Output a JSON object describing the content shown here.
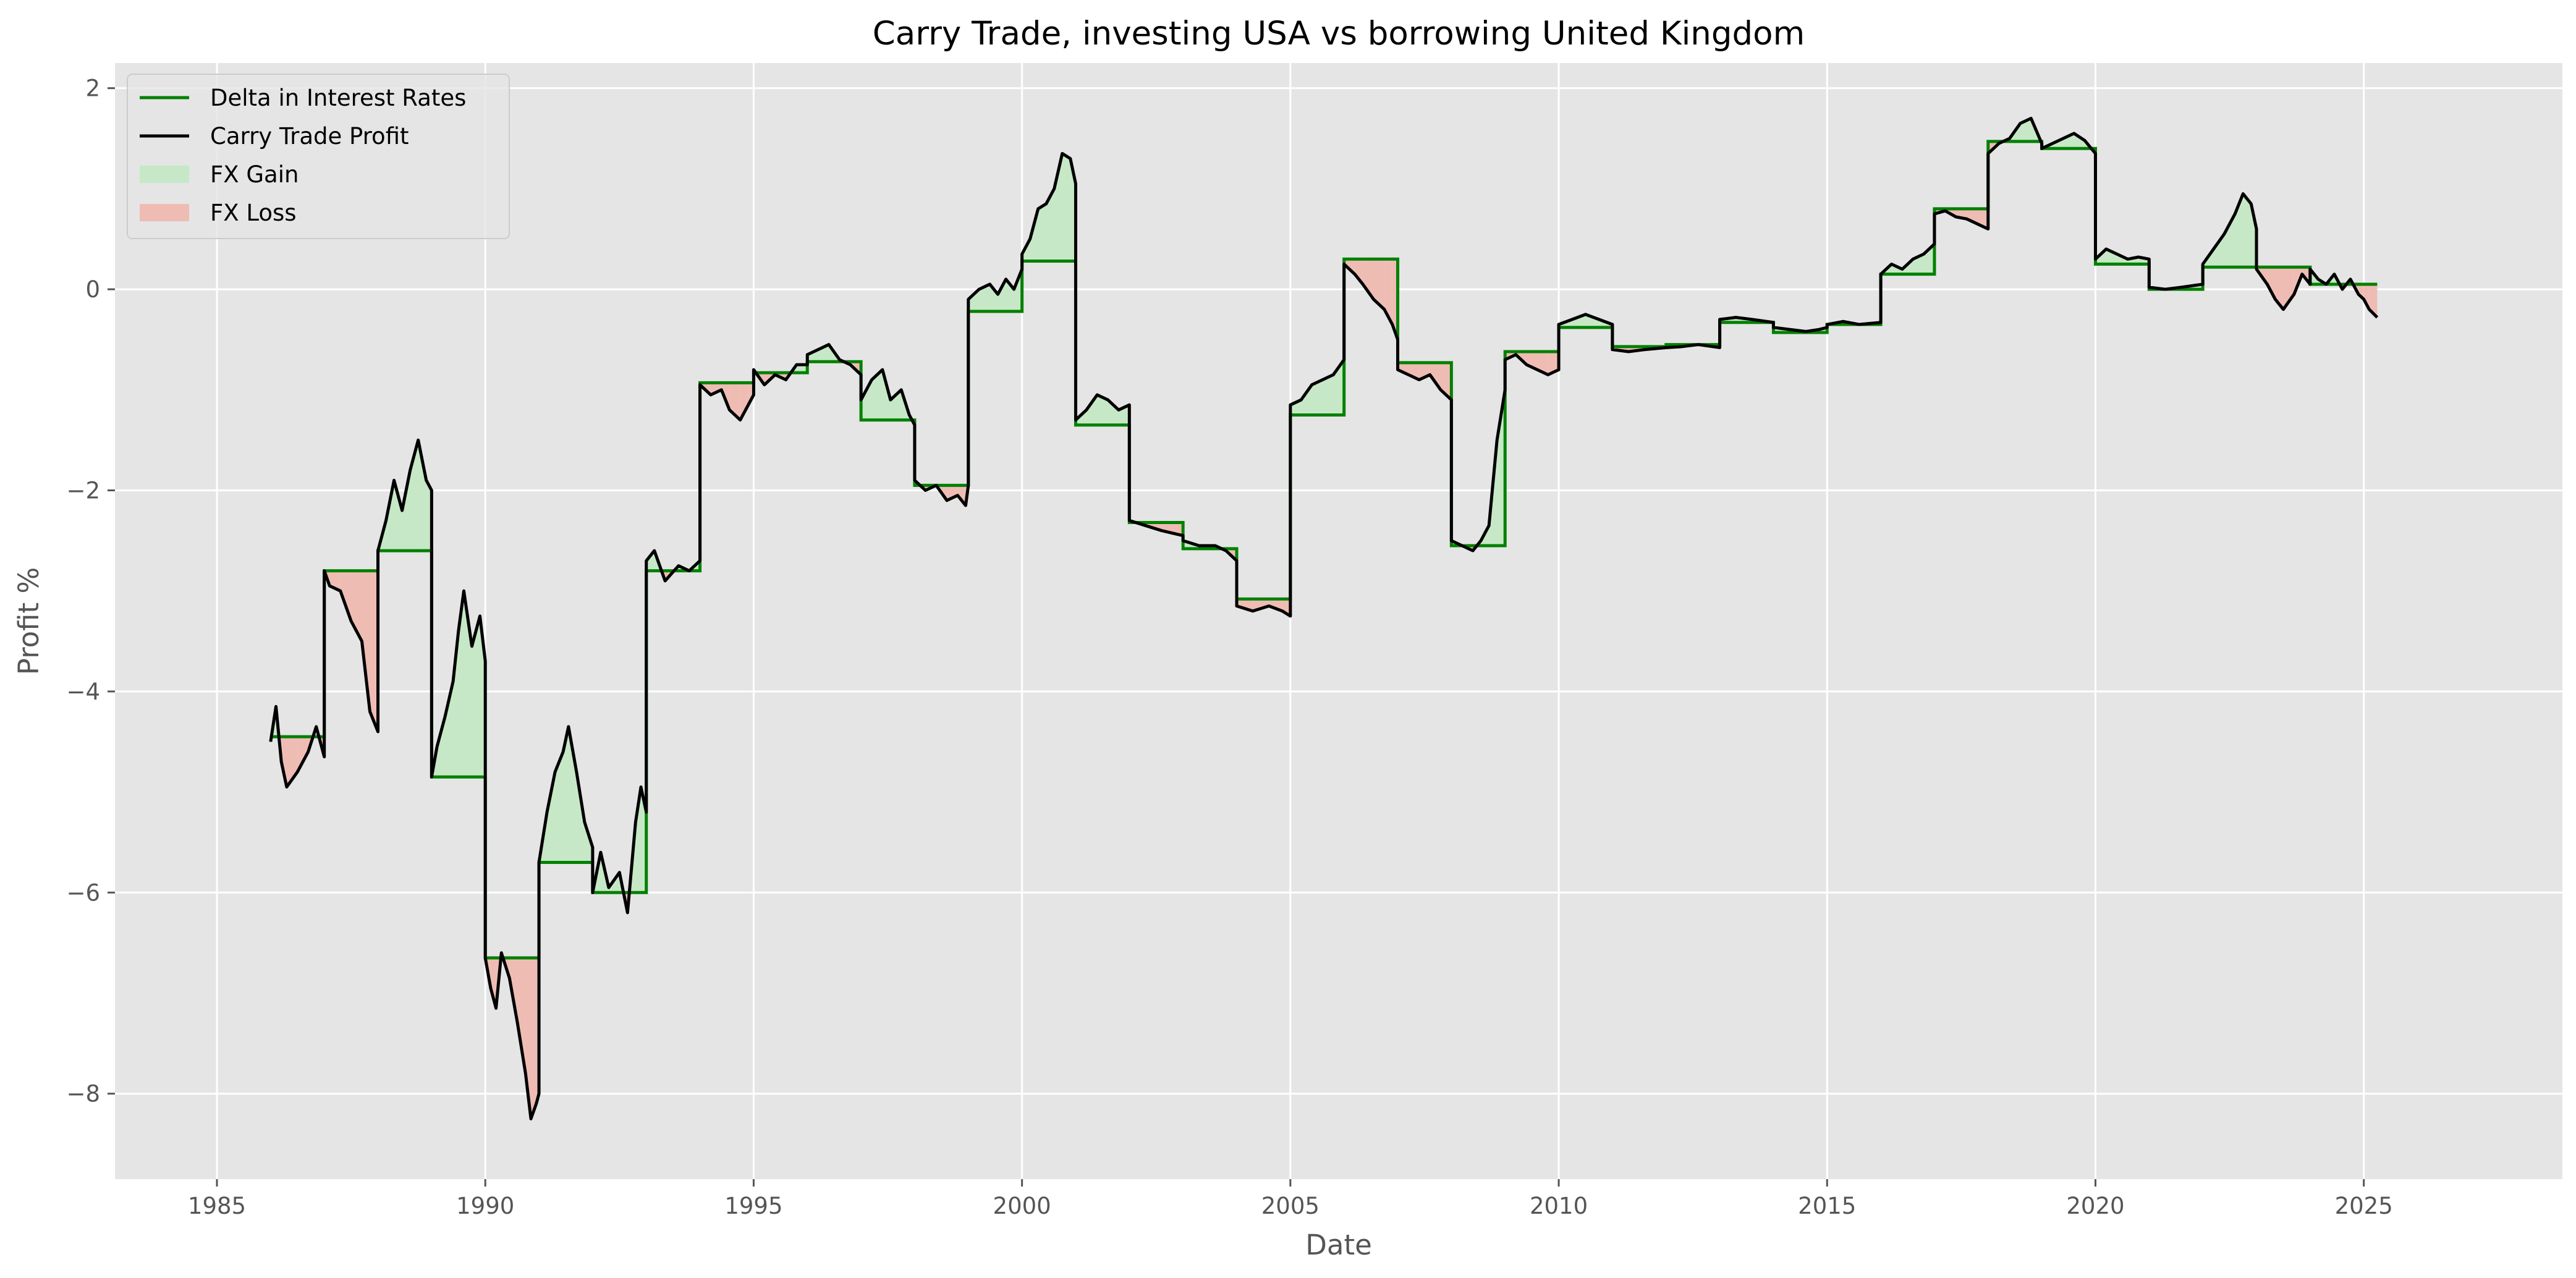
{
  "chart_data": {
    "type": "line",
    "title": "Carry Trade, investing USA vs borrowing United Kingdom",
    "xlabel": "Date",
    "ylabel": "Profit %",
    "xlim": [
      1983.1,
      2028.7
    ],
    "ylim": [
      -8.85,
      2.25
    ],
    "xticks": [
      1985,
      1990,
      1995,
      2000,
      2005,
      2010,
      2015,
      2020,
      2025
    ],
    "xtick_labels": [
      "1985",
      "1990",
      "1995",
      "2000",
      "2005",
      "2010",
      "2015",
      "2020",
      "2025"
    ],
    "yticks": [
      -8,
      -6,
      -4,
      -2,
      0,
      2
    ],
    "ytick_labels": [
      "−8",
      "−6",
      "−4",
      "−2",
      "0",
      "2"
    ],
    "grid": true,
    "legend_position": "top-left",
    "legend": [
      {
        "label": "Delta in Interest Rates",
        "kind": "line",
        "color": "#008000"
      },
      {
        "label": "Carry Trade Profit",
        "kind": "line",
        "color": "#000000"
      },
      {
        "label": "FX Gain",
        "kind": "patch",
        "color": "#c6e8c6"
      },
      {
        "label": "FX Loss",
        "kind": "patch",
        "color": "#efbcb4"
      }
    ],
    "colors": {
      "background": "#e5e5e5",
      "grid": "#ffffff",
      "delta": "#008000",
      "profit": "#000000",
      "fx_gain": "#c6e8c6",
      "fx_loss": "#efbcb4"
    },
    "delta_steps": [
      {
        "start": 1986.0,
        "end": 1987.0,
        "value": -4.45
      },
      {
        "start": 1987.0,
        "end": 1988.0,
        "value": -2.8
      },
      {
        "start": 1988.0,
        "end": 1989.0,
        "value": -2.6
      },
      {
        "start": 1989.0,
        "end": 1990.0,
        "value": -4.85
      },
      {
        "start": 1990.0,
        "end": 1991.0,
        "value": -6.65
      },
      {
        "start": 1991.0,
        "end": 1992.0,
        "value": -5.7
      },
      {
        "start": 1992.0,
        "end": 1993.0,
        "value": -6.0
      },
      {
        "start": 1993.0,
        "end": 1994.0,
        "value": -2.8
      },
      {
        "start": 1994.0,
        "end": 1995.0,
        "value": -0.93
      },
      {
        "start": 1995.0,
        "end": 1996.0,
        "value": -0.83
      },
      {
        "start": 1996.0,
        "end": 1997.0,
        "value": -0.72
      },
      {
        "start": 1997.0,
        "end": 1998.0,
        "value": -1.3
      },
      {
        "start": 1998.0,
        "end": 1999.0,
        "value": -1.95
      },
      {
        "start": 1999.0,
        "end": 2000.0,
        "value": -0.22
      },
      {
        "start": 2000.0,
        "end": 2001.0,
        "value": 0.28
      },
      {
        "start": 2001.0,
        "end": 2002.0,
        "value": -1.35
      },
      {
        "start": 2002.0,
        "end": 2003.0,
        "value": -2.32
      },
      {
        "start": 2003.0,
        "end": 2004.0,
        "value": -2.58
      },
      {
        "start": 2004.0,
        "end": 2005.0,
        "value": -3.08
      },
      {
        "start": 2005.0,
        "end": 2006.0,
        "value": -1.25
      },
      {
        "start": 2006.0,
        "end": 2007.0,
        "value": 0.3
      },
      {
        "start": 2007.0,
        "end": 2008.0,
        "value": -0.73
      },
      {
        "start": 2008.0,
        "end": 2009.0,
        "value": -2.55
      },
      {
        "start": 2009.0,
        "end": 2010.0,
        "value": -0.62
      },
      {
        "start": 2010.0,
        "end": 2011.0,
        "value": -0.38
      },
      {
        "start": 2011.0,
        "end": 2012.0,
        "value": -0.57
      },
      {
        "start": 2012.0,
        "end": 2013.0,
        "value": -0.55
      },
      {
        "start": 2013.0,
        "end": 2014.0,
        "value": -0.33
      },
      {
        "start": 2014.0,
        "end": 2015.0,
        "value": -0.43
      },
      {
        "start": 2015.0,
        "end": 2016.0,
        "value": -0.35
      },
      {
        "start": 2016.0,
        "end": 2017.0,
        "value": 0.15
      },
      {
        "start": 2017.0,
        "end": 2018.0,
        "value": 0.8
      },
      {
        "start": 2018.0,
        "end": 2019.0,
        "value": 1.47
      },
      {
        "start": 2019.0,
        "end": 2020.0,
        "value": 1.4
      },
      {
        "start": 2020.0,
        "end": 2021.0,
        "value": 0.25
      },
      {
        "start": 2021.0,
        "end": 2022.0,
        "value": 0.0
      },
      {
        "start": 2022.0,
        "end": 2023.0,
        "value": 0.22
      },
      {
        "start": 2023.0,
        "end": 2024.0,
        "value": 0.22
      },
      {
        "start": 2024.0,
        "end": 2025.25,
        "value": 0.05
      }
    ],
    "profit_points": [
      [
        1986.0,
        -4.5
      ],
      [
        1986.1,
        -4.15
      ],
      [
        1986.2,
        -4.7
      ],
      [
        1986.3,
        -4.95
      ],
      [
        1986.5,
        -4.8
      ],
      [
        1986.7,
        -4.6
      ],
      [
        1986.85,
        -4.35
      ],
      [
        1987.0,
        -4.65
      ],
      [
        1987.0,
        -2.8
      ],
      [
        1987.1,
        -2.95
      ],
      [
        1987.3,
        -3.0
      ],
      [
        1987.5,
        -3.3
      ],
      [
        1987.7,
        -3.5
      ],
      [
        1987.85,
        -4.2
      ],
      [
        1988.0,
        -4.4
      ],
      [
        1988.0,
        -2.6
      ],
      [
        1988.15,
        -2.3
      ],
      [
        1988.3,
        -1.9
      ],
      [
        1988.45,
        -2.2
      ],
      [
        1988.6,
        -1.8
      ],
      [
        1988.75,
        -1.5
      ],
      [
        1988.9,
        -1.9
      ],
      [
        1989.0,
        -2.0
      ],
      [
        1989.0,
        -4.85
      ],
      [
        1989.1,
        -4.55
      ],
      [
        1989.25,
        -4.25
      ],
      [
        1989.4,
        -3.9
      ],
      [
        1989.5,
        -3.4
      ],
      [
        1989.6,
        -3.0
      ],
      [
        1989.75,
        -3.55
      ],
      [
        1989.9,
        -3.25
      ],
      [
        1990.0,
        -3.7
      ],
      [
        1990.0,
        -6.65
      ],
      [
        1990.1,
        -6.95
      ],
      [
        1990.2,
        -7.15
      ],
      [
        1990.3,
        -6.6
      ],
      [
        1990.45,
        -6.85
      ],
      [
        1990.6,
        -7.3
      ],
      [
        1990.75,
        -7.8
      ],
      [
        1990.85,
        -8.25
      ],
      [
        1990.95,
        -8.1
      ],
      [
        1991.0,
        -8.0
      ],
      [
        1991.0,
        -5.7
      ],
      [
        1991.15,
        -5.2
      ],
      [
        1991.3,
        -4.8
      ],
      [
        1991.45,
        -4.6
      ],
      [
        1991.55,
        -4.35
      ],
      [
        1991.7,
        -4.8
      ],
      [
        1991.85,
        -5.3
      ],
      [
        1992.0,
        -5.55
      ],
      [
        1992.0,
        -6.0
      ],
      [
        1992.15,
        -5.6
      ],
      [
        1992.3,
        -5.95
      ],
      [
        1992.5,
        -5.8
      ],
      [
        1992.65,
        -6.2
      ],
      [
        1992.8,
        -5.3
      ],
      [
        1992.9,
        -4.95
      ],
      [
        1993.0,
        -5.2
      ],
      [
        1993.0,
        -2.7
      ],
      [
        1993.15,
        -2.6
      ],
      [
        1993.35,
        -2.9
      ],
      [
        1993.6,
        -2.75
      ],
      [
        1993.8,
        -2.8
      ],
      [
        1994.0,
        -2.7
      ],
      [
        1994.0,
        -0.95
      ],
      [
        1994.2,
        -1.05
      ],
      [
        1994.4,
        -1.0
      ],
      [
        1994.55,
        -1.2
      ],
      [
        1994.75,
        -1.3
      ],
      [
        1994.9,
        -1.15
      ],
      [
        1995.0,
        -1.05
      ],
      [
        1995.0,
        -0.8
      ],
      [
        1995.2,
        -0.95
      ],
      [
        1995.4,
        -0.85
      ],
      [
        1995.6,
        -0.9
      ],
      [
        1995.8,
        -0.75
      ],
      [
        1996.0,
        -0.75
      ],
      [
        1996.0,
        -0.65
      ],
      [
        1996.2,
        -0.6
      ],
      [
        1996.4,
        -0.55
      ],
      [
        1996.6,
        -0.7
      ],
      [
        1996.8,
        -0.75
      ],
      [
        1997.0,
        -0.85
      ],
      [
        1997.0,
        -1.1
      ],
      [
        1997.2,
        -0.9
      ],
      [
        1997.4,
        -0.8
      ],
      [
        1997.55,
        -1.1
      ],
      [
        1997.75,
        -1.0
      ],
      [
        1997.9,
        -1.25
      ],
      [
        1998.0,
        -1.35
      ],
      [
        1998.0,
        -1.9
      ],
      [
        1998.2,
        -2.0
      ],
      [
        1998.4,
        -1.95
      ],
      [
        1998.6,
        -2.1
      ],
      [
        1998.8,
        -2.05
      ],
      [
        1998.95,
        -2.15
      ],
      [
        1999.0,
        -1.95
      ],
      [
        1999.0,
        -0.1
      ],
      [
        1999.2,
        0.0
      ],
      [
        1999.4,
        0.05
      ],
      [
        1999.55,
        -0.05
      ],
      [
        1999.7,
        0.1
      ],
      [
        1999.85,
        0.0
      ],
      [
        2000.0,
        0.2
      ],
      [
        2000.0,
        0.35
      ],
      [
        2000.15,
        0.5
      ],
      [
        2000.3,
        0.8
      ],
      [
        2000.45,
        0.85
      ],
      [
        2000.6,
        1.0
      ],
      [
        2000.75,
        1.35
      ],
      [
        2000.9,
        1.3
      ],
      [
        2001.0,
        1.05
      ],
      [
        2001.0,
        -1.3
      ],
      [
        2001.2,
        -1.2
      ],
      [
        2001.4,
        -1.05
      ],
      [
        2001.6,
        -1.1
      ],
      [
        2001.8,
        -1.2
      ],
      [
        2002.0,
        -1.15
      ],
      [
        2002.0,
        -2.3
      ],
      [
        2002.3,
        -2.35
      ],
      [
        2002.6,
        -2.4
      ],
      [
        2003.0,
        -2.45
      ],
      [
        2003.0,
        -2.5
      ],
      [
        2003.3,
        -2.55
      ],
      [
        2003.6,
        -2.55
      ],
      [
        2003.8,
        -2.6
      ],
      [
        2004.0,
        -2.7
      ],
      [
        2004.0,
        -3.15
      ],
      [
        2004.3,
        -3.2
      ],
      [
        2004.6,
        -3.15
      ],
      [
        2004.85,
        -3.2
      ],
      [
        2005.0,
        -3.25
      ],
      [
        2005.0,
        -1.15
      ],
      [
        2005.2,
        -1.1
      ],
      [
        2005.4,
        -0.95
      ],
      [
        2005.6,
        -0.9
      ],
      [
        2005.8,
        -0.85
      ],
      [
        2006.0,
        -0.7
      ],
      [
        2006.0,
        0.25
      ],
      [
        2006.2,
        0.15
      ],
      [
        2006.35,
        0.05
      ],
      [
        2006.55,
        -0.1
      ],
      [
        2006.75,
        -0.2
      ],
      [
        2006.9,
        -0.35
      ],
      [
        2007.0,
        -0.5
      ],
      [
        2007.0,
        -0.8
      ],
      [
        2007.2,
        -0.85
      ],
      [
        2007.4,
        -0.9
      ],
      [
        2007.6,
        -0.85
      ],
      [
        2007.8,
        -1.0
      ],
      [
        2008.0,
        -1.1
      ],
      [
        2008.0,
        -2.5
      ],
      [
        2008.2,
        -2.55
      ],
      [
        2008.4,
        -2.6
      ],
      [
        2008.55,
        -2.5
      ],
      [
        2008.7,
        -2.35
      ],
      [
        2008.85,
        -1.5
      ],
      [
        2009.0,
        -1.0
      ],
      [
        2009.0,
        -0.7
      ],
      [
        2009.2,
        -0.65
      ],
      [
        2009.4,
        -0.75
      ],
      [
        2009.6,
        -0.8
      ],
      [
        2009.8,
        -0.85
      ],
      [
        2010.0,
        -0.8
      ],
      [
        2010.0,
        -0.35
      ],
      [
        2010.25,
        -0.3
      ],
      [
        2010.5,
        -0.25
      ],
      [
        2010.75,
        -0.3
      ],
      [
        2011.0,
        -0.35
      ],
      [
        2011.0,
        -0.6
      ],
      [
        2011.3,
        -0.62
      ],
      [
        2011.6,
        -0.6
      ],
      [
        2012.0,
        -0.58
      ],
      [
        2012.0,
        -0.58
      ],
      [
        2012.3,
        -0.57
      ],
      [
        2012.6,
        -0.55
      ],
      [
        2013.0,
        -0.58
      ],
      [
        2013.0,
        -0.3
      ],
      [
        2013.3,
        -0.28
      ],
      [
        2013.6,
        -0.3
      ],
      [
        2014.0,
        -0.33
      ],
      [
        2014.0,
        -0.38
      ],
      [
        2014.3,
        -0.4
      ],
      [
        2014.6,
        -0.42
      ],
      [
        2014.85,
        -0.4
      ],
      [
        2015.0,
        -0.38
      ],
      [
        2015.0,
        -0.35
      ],
      [
        2015.3,
        -0.32
      ],
      [
        2015.6,
        -0.35
      ],
      [
        2016.0,
        -0.33
      ],
      [
        2016.0,
        0.15
      ],
      [
        2016.2,
        0.25
      ],
      [
        2016.4,
        0.2
      ],
      [
        2016.6,
        0.3
      ],
      [
        2016.8,
        0.35
      ],
      [
        2017.0,
        0.45
      ],
      [
        2017.0,
        0.75
      ],
      [
        2017.2,
        0.78
      ],
      [
        2017.4,
        0.72
      ],
      [
        2017.6,
        0.7
      ],
      [
        2017.8,
        0.65
      ],
      [
        2018.0,
        0.6
      ],
      [
        2018.0,
        1.35
      ],
      [
        2018.2,
        1.45
      ],
      [
        2018.4,
        1.5
      ],
      [
        2018.6,
        1.65
      ],
      [
        2018.8,
        1.7
      ],
      [
        2019.0,
        1.45
      ],
      [
        2019.0,
        1.4
      ],
      [
        2019.2,
        1.45
      ],
      [
        2019.4,
        1.5
      ],
      [
        2019.6,
        1.55
      ],
      [
        2019.8,
        1.48
      ],
      [
        2020.0,
        1.35
      ],
      [
        2020.0,
        0.3
      ],
      [
        2020.2,
        0.4
      ],
      [
        2020.4,
        0.35
      ],
      [
        2020.6,
        0.3
      ],
      [
        2020.8,
        0.32
      ],
      [
        2021.0,
        0.3
      ],
      [
        2021.0,
        0.02
      ],
      [
        2021.3,
        0.0
      ],
      [
        2021.6,
        0.02
      ],
      [
        2022.0,
        0.05
      ],
      [
        2022.0,
        0.25
      ],
      [
        2022.2,
        0.4
      ],
      [
        2022.4,
        0.55
      ],
      [
        2022.6,
        0.75
      ],
      [
        2022.75,
        0.95
      ],
      [
        2022.9,
        0.85
      ],
      [
        2023.0,
        0.6
      ],
      [
        2023.0,
        0.2
      ],
      [
        2023.2,
        0.05
      ],
      [
        2023.35,
        -0.1
      ],
      [
        2023.5,
        -0.2
      ],
      [
        2023.7,
        -0.05
      ],
      [
        2023.85,
        0.15
      ],
      [
        2024.0,
        0.05
      ],
      [
        2024.0,
        0.2
      ],
      [
        2024.15,
        0.1
      ],
      [
        2024.3,
        0.05
      ],
      [
        2024.45,
        0.15
      ],
      [
        2024.6,
        0.0
      ],
      [
        2024.75,
        0.1
      ],
      [
        2024.9,
        -0.05
      ],
      [
        2025.0,
        -0.1
      ],
      [
        2025.1,
        -0.2
      ],
      [
        2025.25,
        -0.28
      ]
    ]
  }
}
